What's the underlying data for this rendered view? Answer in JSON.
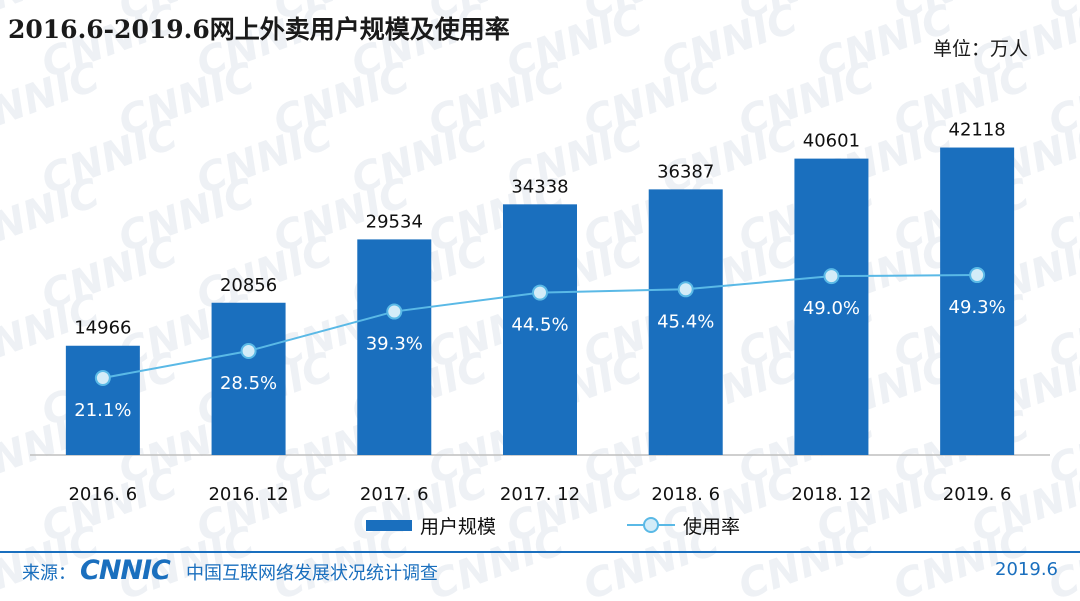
{
  "header": {
    "title": "2016.6-2019.6网上外卖用户规模及使用率",
    "unit": "单位：万人"
  },
  "watermark_text": "CNNIC",
  "chart_data": {
    "type": "bar",
    "categories": [
      "2016. 6",
      "2016. 12",
      "2017. 6",
      "2017. 12",
      "2018. 6",
      "2018. 12",
      "2019. 6"
    ],
    "series": [
      {
        "name": "用户规模",
        "type": "bar",
        "values": [
          14966,
          20856,
          29534,
          34338,
          36387,
          40601,
          42118
        ],
        "labels": [
          "14966",
          "20856",
          "29534",
          "34338",
          "36387",
          "40601",
          "42118"
        ],
        "color": "#1a6fbe"
      },
      {
        "name": "使用率",
        "type": "line",
        "values": [
          21.1,
          28.5,
          39.3,
          44.5,
          45.4,
          49.0,
          49.3
        ],
        "labels": [
          "21.1%",
          "28.5%",
          "39.3%",
          "44.5%",
          "45.4%",
          "49.0%",
          "49.3%"
        ],
        "color": "#5ab9e6"
      }
    ],
    "ylim_bar": [
      0,
      50000
    ],
    "ylim_line": [
      0,
      100
    ],
    "grid": false,
    "legend_placement": "bottom"
  },
  "legend": {
    "bar_label": "用户规模",
    "line_label": "使用率"
  },
  "footer": {
    "source_label": "来源：",
    "logo_text": "CNNIC",
    "org_name": "中国互联网络发展状况统计调查",
    "date": "2019.6"
  },
  "colors": {
    "bar": "#1a6fbe",
    "line": "#5ab9e6",
    "marker_fill": "#d3ecf8",
    "text": "#1a1a1a",
    "footer": "#1a6fbe"
  }
}
